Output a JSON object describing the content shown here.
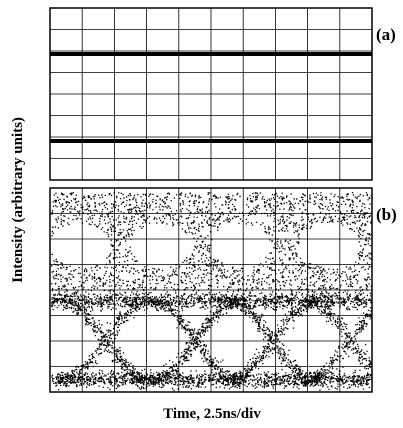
{
  "figure": {
    "y_label": "Intensity (arbitrary units)",
    "x_label": "Time, 2.5ns/div",
    "panels": [
      {
        "label": "(a)"
      },
      {
        "label": "(b)"
      }
    ]
  }
}
